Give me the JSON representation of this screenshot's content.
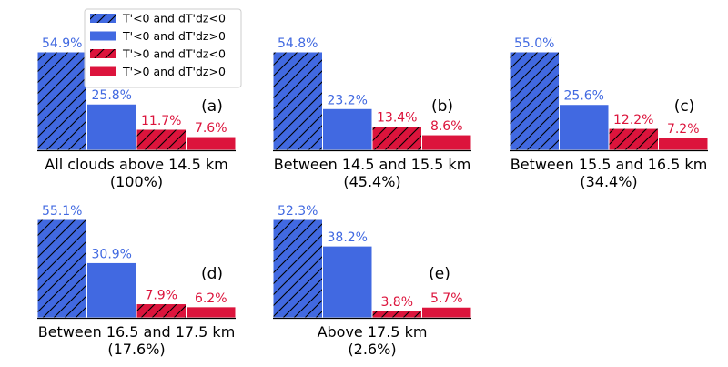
{
  "colors": {
    "blue": "#4169e1",
    "red": "#dc143c",
    "hatch": "#000000",
    "bar_edge": "#ffffff",
    "axis": "#000000"
  },
  "legend": {
    "location": "top-left",
    "entries": [
      {
        "label": "T'<0 and dT'dz<0",
        "color": "blue",
        "hatched": true
      },
      {
        "label": "T'<0 and dT'dz>0",
        "color": "blue",
        "hatched": false
      },
      {
        "label": "T'>0 and dT'dz<0",
        "color": "red",
        "hatched": true
      },
      {
        "label": "T'>0 and dT'dz>0",
        "color": "red",
        "hatched": false
      }
    ]
  },
  "chart_data": [
    {
      "type": "bar",
      "tag": "(a)",
      "xlabel": [
        "All clouds above 14.5 km",
        "(100%)"
      ],
      "ylim": [
        0,
        54.9
      ],
      "values": [
        54.9,
        25.8,
        11.7,
        7.6
      ],
      "value_labels": [
        "54.9%",
        "25.8%",
        "11.7%",
        "7.6%"
      ]
    },
    {
      "type": "bar",
      "tag": "(b)",
      "xlabel": [
        "Between 14.5 and 15.5 km",
        "(45.4%)"
      ],
      "ylim": [
        0,
        54.8
      ],
      "values": [
        54.8,
        23.2,
        13.4,
        8.6
      ],
      "value_labels": [
        "54.8%",
        "23.2%",
        "13.4%",
        "8.6%"
      ]
    },
    {
      "type": "bar",
      "tag": "(c)",
      "xlabel": [
        "Between 15.5 and 16.5 km",
        "(34.4%)"
      ],
      "ylim": [
        0,
        55.0
      ],
      "values": [
        55.0,
        25.6,
        12.2,
        7.2
      ],
      "value_labels": [
        "55.0%",
        "25.6%",
        "12.2%",
        "7.2%"
      ]
    },
    {
      "type": "bar",
      "tag": "(d)",
      "xlabel": [
        "Between 16.5 and 17.5 km",
        "(17.6%)"
      ],
      "ylim": [
        0,
        55.1
      ],
      "values": [
        55.1,
        30.9,
        7.9,
        6.2
      ],
      "value_labels": [
        "55.1%",
        "30.9%",
        "7.9%",
        "6.2%"
      ]
    },
    {
      "type": "bar",
      "tag": "(e)",
      "xlabel": [
        "Above 17.5 km",
        "(2.6%)"
      ],
      "ylim": [
        0,
        52.3
      ],
      "values": [
        52.3,
        38.2,
        3.8,
        5.7
      ],
      "value_labels": [
        "52.3%",
        "38.2%",
        "3.8%",
        "5.7%"
      ]
    }
  ]
}
